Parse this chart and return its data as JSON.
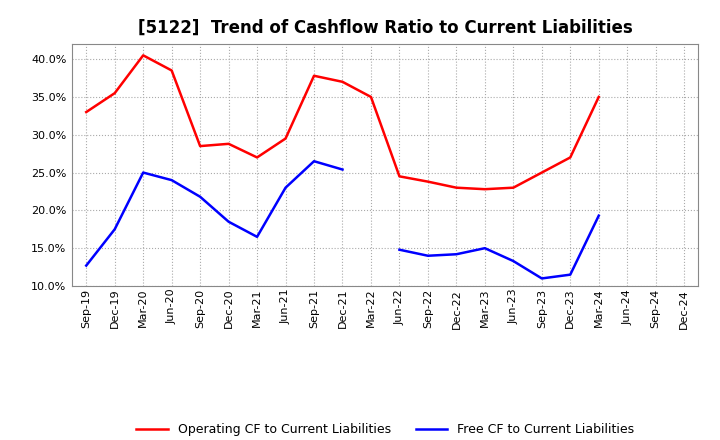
{
  "title": "[5122]  Trend of Cashflow Ratio to Current Liabilities",
  "x_labels": [
    "Sep-19",
    "Dec-19",
    "Mar-20",
    "Jun-20",
    "Sep-20",
    "Dec-20",
    "Mar-21",
    "Jun-21",
    "Sep-21",
    "Dec-21",
    "Mar-22",
    "Jun-22",
    "Sep-22",
    "Dec-22",
    "Mar-23",
    "Jun-23",
    "Sep-23",
    "Dec-23",
    "Mar-24",
    "Jun-24",
    "Sep-24",
    "Dec-24"
  ],
  "operating_cf": [
    0.33,
    0.355,
    0.405,
    0.385,
    0.285,
    0.288,
    0.27,
    0.295,
    0.378,
    0.37,
    0.35,
    0.245,
    0.238,
    0.23,
    0.228,
    0.23,
    0.25,
    0.27,
    0.35,
    null,
    null,
    null
  ],
  "free_cf": [
    0.127,
    0.175,
    0.25,
    0.24,
    0.218,
    0.185,
    0.165,
    0.23,
    0.265,
    0.254,
    null,
    0.148,
    0.14,
    0.142,
    0.15,
    0.133,
    0.11,
    0.115,
    0.193,
    null,
    null,
    null
  ],
  "operating_color": "#ff0000",
  "free_color": "#0000ff",
  "ylim_min": 0.1,
  "ylim_max": 0.42,
  "yticks": [
    0.1,
    0.15,
    0.2,
    0.25,
    0.3,
    0.35,
    0.4
  ],
  "background_color": "#ffffff",
  "grid_color": "#aaaaaa",
  "legend_op": "Operating CF to Current Liabilities",
  "legend_free": "Free CF to Current Liabilities",
  "title_fontsize": 12,
  "tick_fontsize": 8,
  "legend_fontsize": 9
}
